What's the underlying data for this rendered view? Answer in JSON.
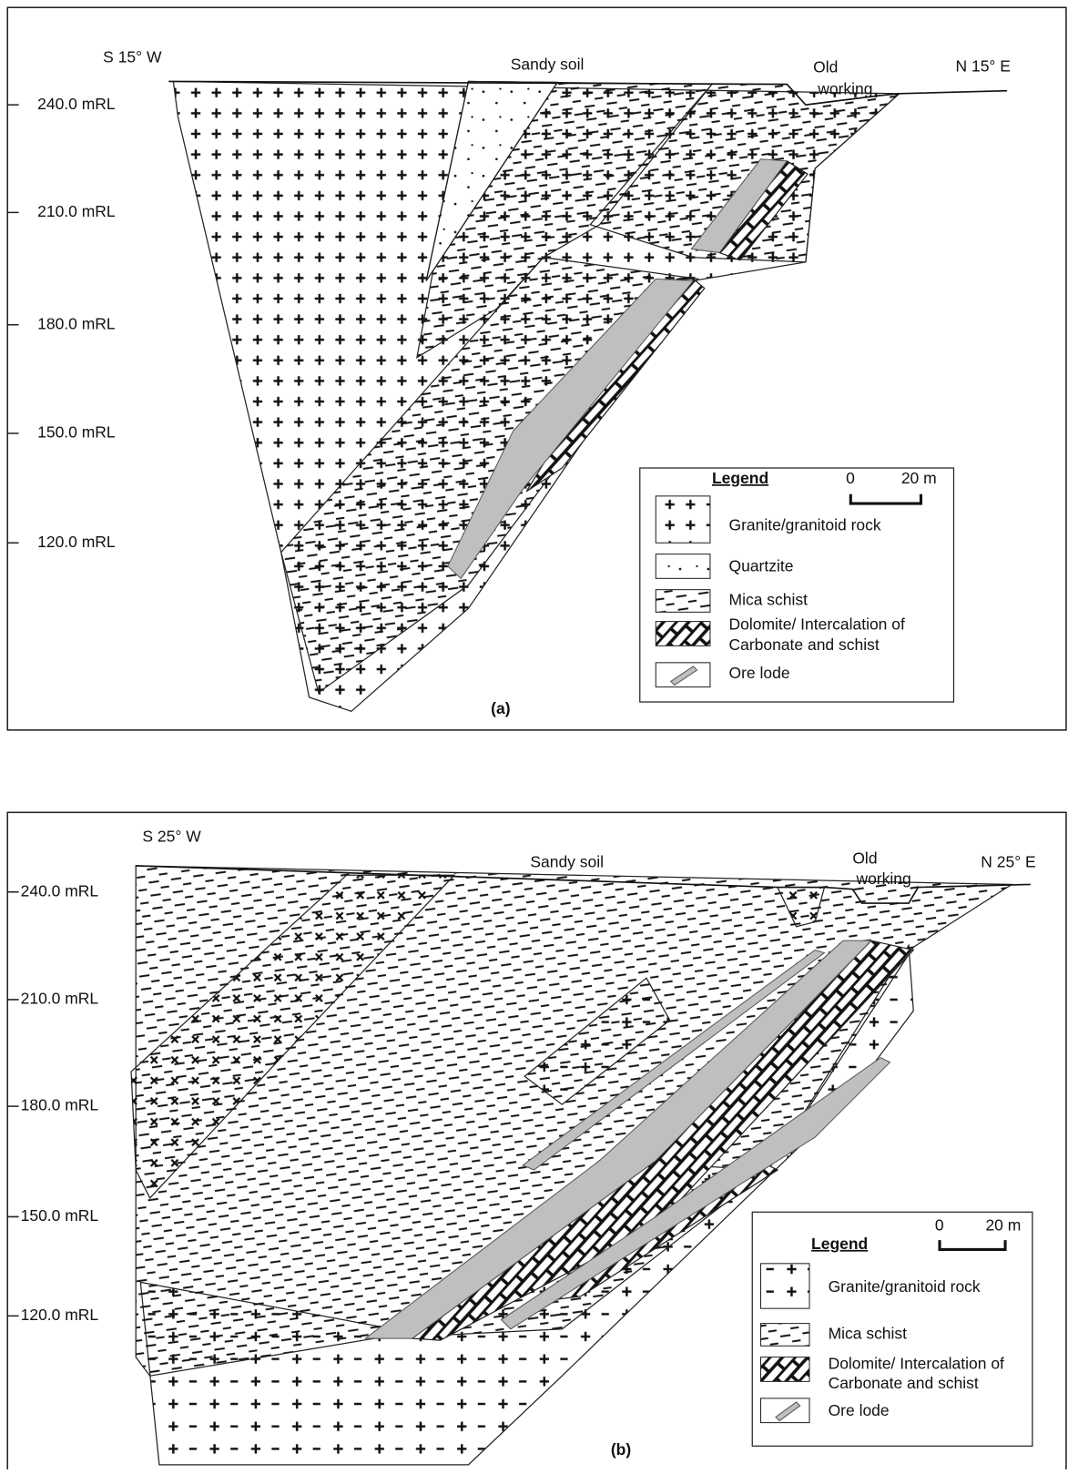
{
  "panels": [
    {
      "direction_left": "S 15° W",
      "direction_right": "N 15° E",
      "surface_label": "Sandy soil",
      "old_working": [
        "Old",
        "working"
      ],
      "levels": [
        "240.0 mRL",
        "210.0 mRL",
        "180.0 mRL",
        "150.0 mRL",
        "120.0 mRL"
      ],
      "legend": {
        "title": "Legend",
        "scale": [
          "0",
          "20 m"
        ],
        "items": [
          [
            "Granite/granitoid rock"
          ],
          [
            "Quartzite"
          ],
          [
            "Mica schist"
          ],
          [
            "Dolomite/ Intercalation of",
            "Carbonate and schist"
          ],
          [
            "Ore lode"
          ]
        ]
      },
      "caption": "(a)"
    },
    {
      "direction_left": "S 25° W",
      "direction_right": "N 25° E",
      "surface_label": "Sandy soil",
      "old_working": [
        "Old",
        "working"
      ],
      "levels": [
        "240.0 mRL",
        "210.0 mRL",
        "180.0 mRL",
        "150.0 mRL",
        "120.0 mRL"
      ],
      "legend": {
        "title": "Legend",
        "scale": [
          "0",
          "20 m"
        ],
        "items": [
          [
            "Granite/granitoid rock"
          ],
          [
            "Mica schist"
          ],
          [
            "Dolomite/ Intercalation of",
            "Carbonate and schist"
          ],
          [
            "Ore lode"
          ]
        ]
      },
      "caption": "(b)"
    }
  ]
}
